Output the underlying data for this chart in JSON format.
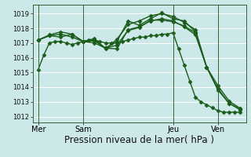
{
  "background_color": "#cce8e8",
  "grid_color": "#b0d8d0",
  "line_color": "#1a5c1a",
  "marker": "D",
  "markersize": 2.5,
  "linewidth": 1.0,
  "xlabel": "Pression niveau de la mer( hPa )",
  "xlabel_fontsize": 8.5,
  "yticks": [
    1012,
    1013,
    1014,
    1015,
    1016,
    1017,
    1018,
    1019
  ],
  "ylim": [
    1011.6,
    1019.6
  ],
  "xlim": [
    -3,
    111
  ],
  "xtick_labels": [
    "Mer",
    "Sam",
    "Jeu",
    "Ven"
  ],
  "xtick_positions": [
    0,
    24,
    72,
    96
  ],
  "vline_positions": [
    0,
    24,
    72,
    96
  ],
  "series": [
    {
      "x": [
        0,
        3,
        6,
        9,
        12,
        15,
        18,
        21,
        24,
        27,
        30,
        33,
        36,
        39,
        42,
        45,
        48,
        51,
        54,
        57,
        60,
        63,
        66,
        69,
        72,
        75,
        78,
        81,
        84,
        87,
        90,
        93,
        96,
        99,
        102,
        105,
        108
      ],
      "y": [
        1015.2,
        1016.2,
        1017.0,
        1017.1,
        1017.1,
        1017.0,
        1016.9,
        1017.0,
        1017.1,
        1017.2,
        1017.2,
        1017.1,
        1017.0,
        1017.0,
        1017.0,
        1017.1,
        1017.2,
        1017.3,
        1017.4,
        1017.4,
        1017.5,
        1017.5,
        1017.6,
        1017.6,
        1017.7,
        1016.6,
        1015.5,
        1014.4,
        1013.3,
        1013.0,
        1012.8,
        1012.6,
        1012.4,
        1012.3,
        1012.3,
        1012.3,
        1012.3
      ]
    },
    {
      "x": [
        0,
        6,
        12,
        18,
        24,
        30,
        36,
        42,
        48,
        54,
        60,
        66,
        72,
        78,
        84
      ],
      "y": [
        1017.2,
        1017.5,
        1017.4,
        1017.6,
        1017.1,
        1017.2,
        1016.65,
        1017.1,
        1018.5,
        1018.2,
        1018.65,
        1019.05,
        1018.65,
        1018.5,
        1017.75
      ]
    },
    {
      "x": [
        0,
        6,
        12,
        18,
        24,
        30,
        36,
        42,
        48,
        54,
        60,
        66,
        72,
        78,
        84,
        90,
        96,
        102,
        108
      ],
      "y": [
        1017.2,
        1017.55,
        1017.75,
        1017.6,
        1017.1,
        1017.3,
        1016.6,
        1017.25,
        1018.25,
        1018.5,
        1018.85,
        1019.0,
        1018.8,
        1018.4,
        1017.9,
        1015.35,
        1014.1,
        1013.05,
        1012.55
      ]
    },
    {
      "x": [
        0,
        6,
        12,
        18,
        24,
        30,
        36,
        42,
        48,
        54,
        60,
        66,
        72,
        78,
        84,
        90,
        96,
        102,
        108
      ],
      "y": [
        1017.2,
        1017.5,
        1017.6,
        1017.4,
        1017.1,
        1017.15,
        1016.65,
        1016.85,
        1017.85,
        1018.05,
        1018.55,
        1018.55,
        1018.45,
        1018.15,
        1017.7,
        1015.35,
        1013.9,
        1012.9,
        1012.45
      ]
    },
    {
      "x": [
        24,
        30,
        36,
        42,
        48,
        54,
        60,
        66,
        72,
        78,
        84,
        90,
        96,
        102,
        108
      ],
      "y": [
        1017.1,
        1017.0,
        1016.65,
        1016.6,
        1017.9,
        1018.1,
        1018.5,
        1018.65,
        1018.5,
        1018.1,
        1017.55,
        1015.35,
        1013.8,
        1012.9,
        1012.5
      ]
    }
  ]
}
